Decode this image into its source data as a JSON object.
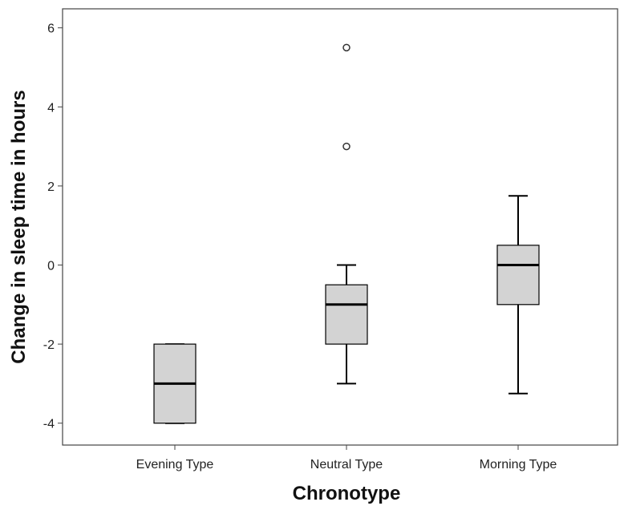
{
  "chart_data": {
    "type": "boxplot",
    "xlabel": "Chronotype",
    "ylabel": "Change in sleep time in hours",
    "ylim": [
      -4.6,
      6.6
    ],
    "yticks": [
      6,
      4,
      2,
      0,
      -2,
      -4
    ],
    "ytick_labels": [
      "6",
      "4",
      "2",
      "0",
      "-2",
      "-4"
    ],
    "categories": [
      "Evening Type",
      "Neutral Type",
      "Morning Type"
    ],
    "boxes": [
      {
        "category": "Evening Type",
        "whisker_low": -4,
        "q1": -4,
        "median": -3,
        "q3": -2,
        "whisker_high": -2,
        "outliers": []
      },
      {
        "category": "Neutral Type",
        "whisker_low": -3,
        "q1": -2,
        "median": -1,
        "q3": -0.5,
        "whisker_high": 0,
        "outliers": [
          3,
          5.5
        ]
      },
      {
        "category": "Morning Type",
        "whisker_low": -3.25,
        "q1": -1,
        "median": 0,
        "q3": 0.5,
        "whisker_high": 1.75,
        "outliers": []
      }
    ],
    "grid": false,
    "legend": "none",
    "colors": {
      "box_fill": "#d3d3d3",
      "stroke": "#000000",
      "axis": "#444444"
    }
  }
}
